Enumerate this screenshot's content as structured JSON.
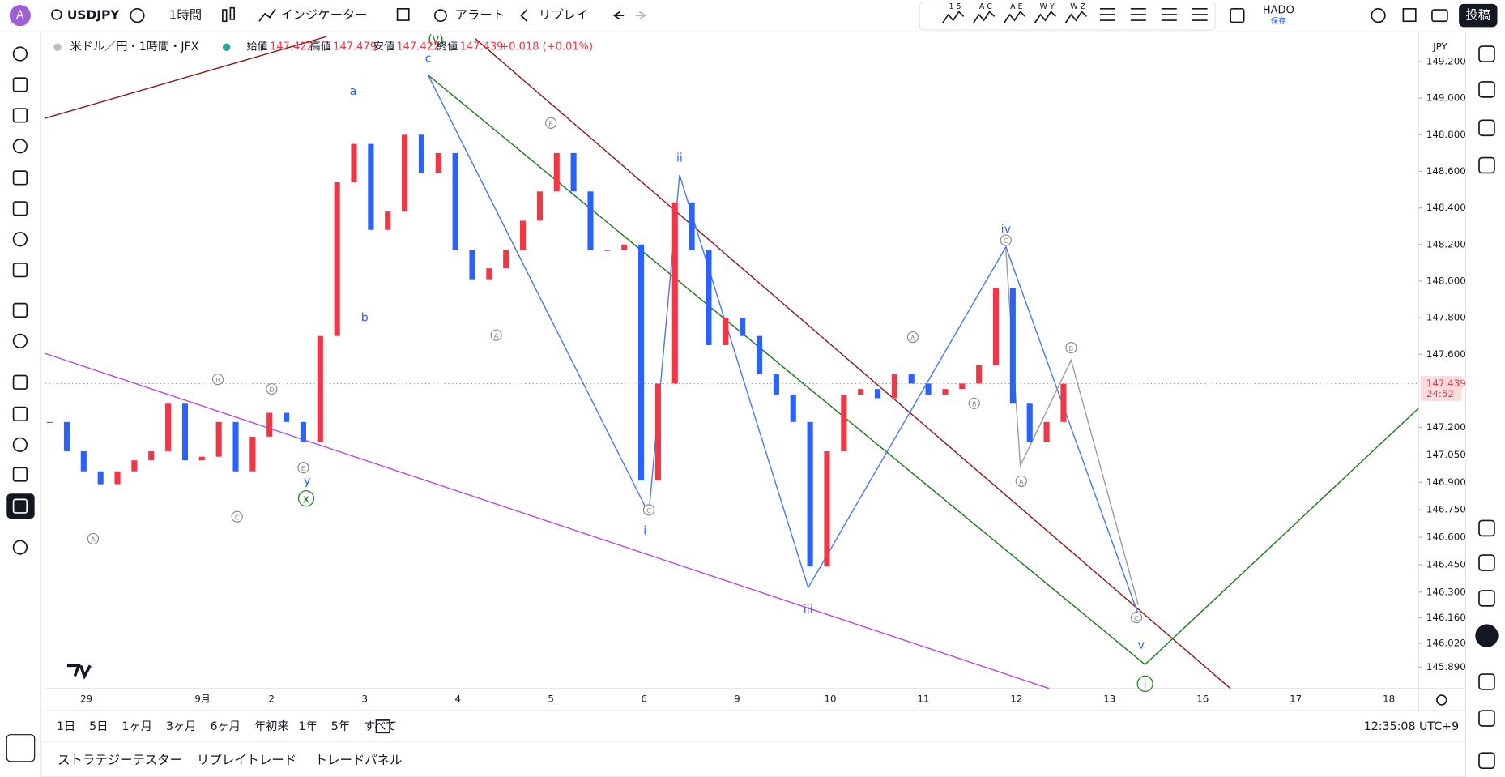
{
  "toolbar": {
    "symbol": "USDJPY",
    "interval": "1時間",
    "indicators": "インジケーター",
    "alert": "アラート",
    "replay": "リプレイ",
    "wave_tools": [
      "1 5",
      "A C",
      "A E",
      "W Y",
      "W Z"
    ],
    "layout_name": "HADO",
    "layout_status": "保存",
    "publish": "投稿"
  },
  "legend": {
    "instrument": "米ドル／円・1時間・JFX",
    "open_label": "始値",
    "open": "147.422",
    "high_label": "高値",
    "high": "147.479",
    "low_label": "安値",
    "low": "147.422",
    "close_label": "終値",
    "close": "147.439",
    "change": "+0.018 (+0.01%)"
  },
  "chart_data": {
    "type": "candlestick",
    "closes": [
      147.23,
      147.07,
      146.96,
      146.89,
      146.96,
      147.02,
      147.07,
      147.33,
      147.02,
      147.04,
      147.23,
      146.96,
      147.15,
      147.28,
      147.23,
      147.12,
      147.7,
      148.54,
      148.75,
      148.28,
      148.38,
      148.8,
      148.59,
      148.7,
      148.17,
      148.01,
      148.07,
      148.17,
      148.33,
      148.49,
      148.7,
      148.49,
      148.17,
      148.17,
      148.2,
      146.91,
      147.44,
      148.43,
      148.17,
      147.65,
      147.8,
      147.7,
      147.49,
      147.38,
      147.23,
      146.44,
      147.07,
      147.38,
      147.41,
      147.36,
      147.49,
      147.44,
      147.38,
      147.41,
      147.44,
      147.54,
      147.96,
      147.33,
      147.12,
      147.23,
      147.439
    ],
    "ylim": [
      145.773,
      149.352
    ],
    "yticks": [
      {
        "value": 149.2,
        "label": "149.200"
      },
      {
        "value": 149.0,
        "label": "149.000"
      },
      {
        "value": 148.8,
        "label": "148.800"
      },
      {
        "value": 148.6,
        "label": "148.600"
      },
      {
        "value": 148.4,
        "label": "148.400"
      },
      {
        "value": 148.2,
        "label": "148.200"
      },
      {
        "value": 148.0,
        "label": "148.000"
      },
      {
        "value": 147.8,
        "label": "147.800"
      },
      {
        "value": 147.6,
        "label": "147.600"
      },
      {
        "value": 147.2,
        "label": "147.200"
      },
      {
        "value": 147.05,
        "label": "147.050"
      },
      {
        "value": 146.9,
        "label": "146.900"
      },
      {
        "value": 146.75,
        "label": "146.750"
      },
      {
        "value": 146.6,
        "label": "146.600"
      },
      {
        "value": 146.45,
        "label": "146.450"
      },
      {
        "value": 146.3,
        "label": "146.300"
      },
      {
        "value": 146.16,
        "label": "146.160"
      },
      {
        "value": 146.02,
        "label": "146.020"
      },
      {
        "value": 145.89,
        "label": "145.890"
      }
    ],
    "x_labels": [
      "29",
      "9月",
      "2",
      "3",
      "4",
      "5",
      "6",
      "9",
      "10",
      "11",
      "12",
      "13",
      "16",
      "17",
      "18"
    ],
    "currency": "JPY",
    "last_price": {
      "value": 147.439,
      "label": "147.439"
    },
    "countdown": "24:52",
    "annotations": [
      "a",
      "b",
      "c",
      "(y)",
      "y",
      "x",
      "i",
      "ii",
      "iii",
      "iv",
      "v",
      "i",
      "A",
      "B",
      "C",
      "D",
      "E",
      "A",
      "B",
      "C",
      "A",
      "B",
      "C",
      "A",
      "B",
      "C"
    ]
  },
  "ranges": [
    "1日",
    "5日",
    "1ヶ月",
    "3ヶ月",
    "6ヶ月",
    "年初来",
    "1年",
    "5年",
    "すべて"
  ],
  "clock": "12:35:08 UTC+9",
  "bottom_tabs": [
    "ストラテジーテスター",
    "リプレイトレード",
    "トレードパネル"
  ]
}
